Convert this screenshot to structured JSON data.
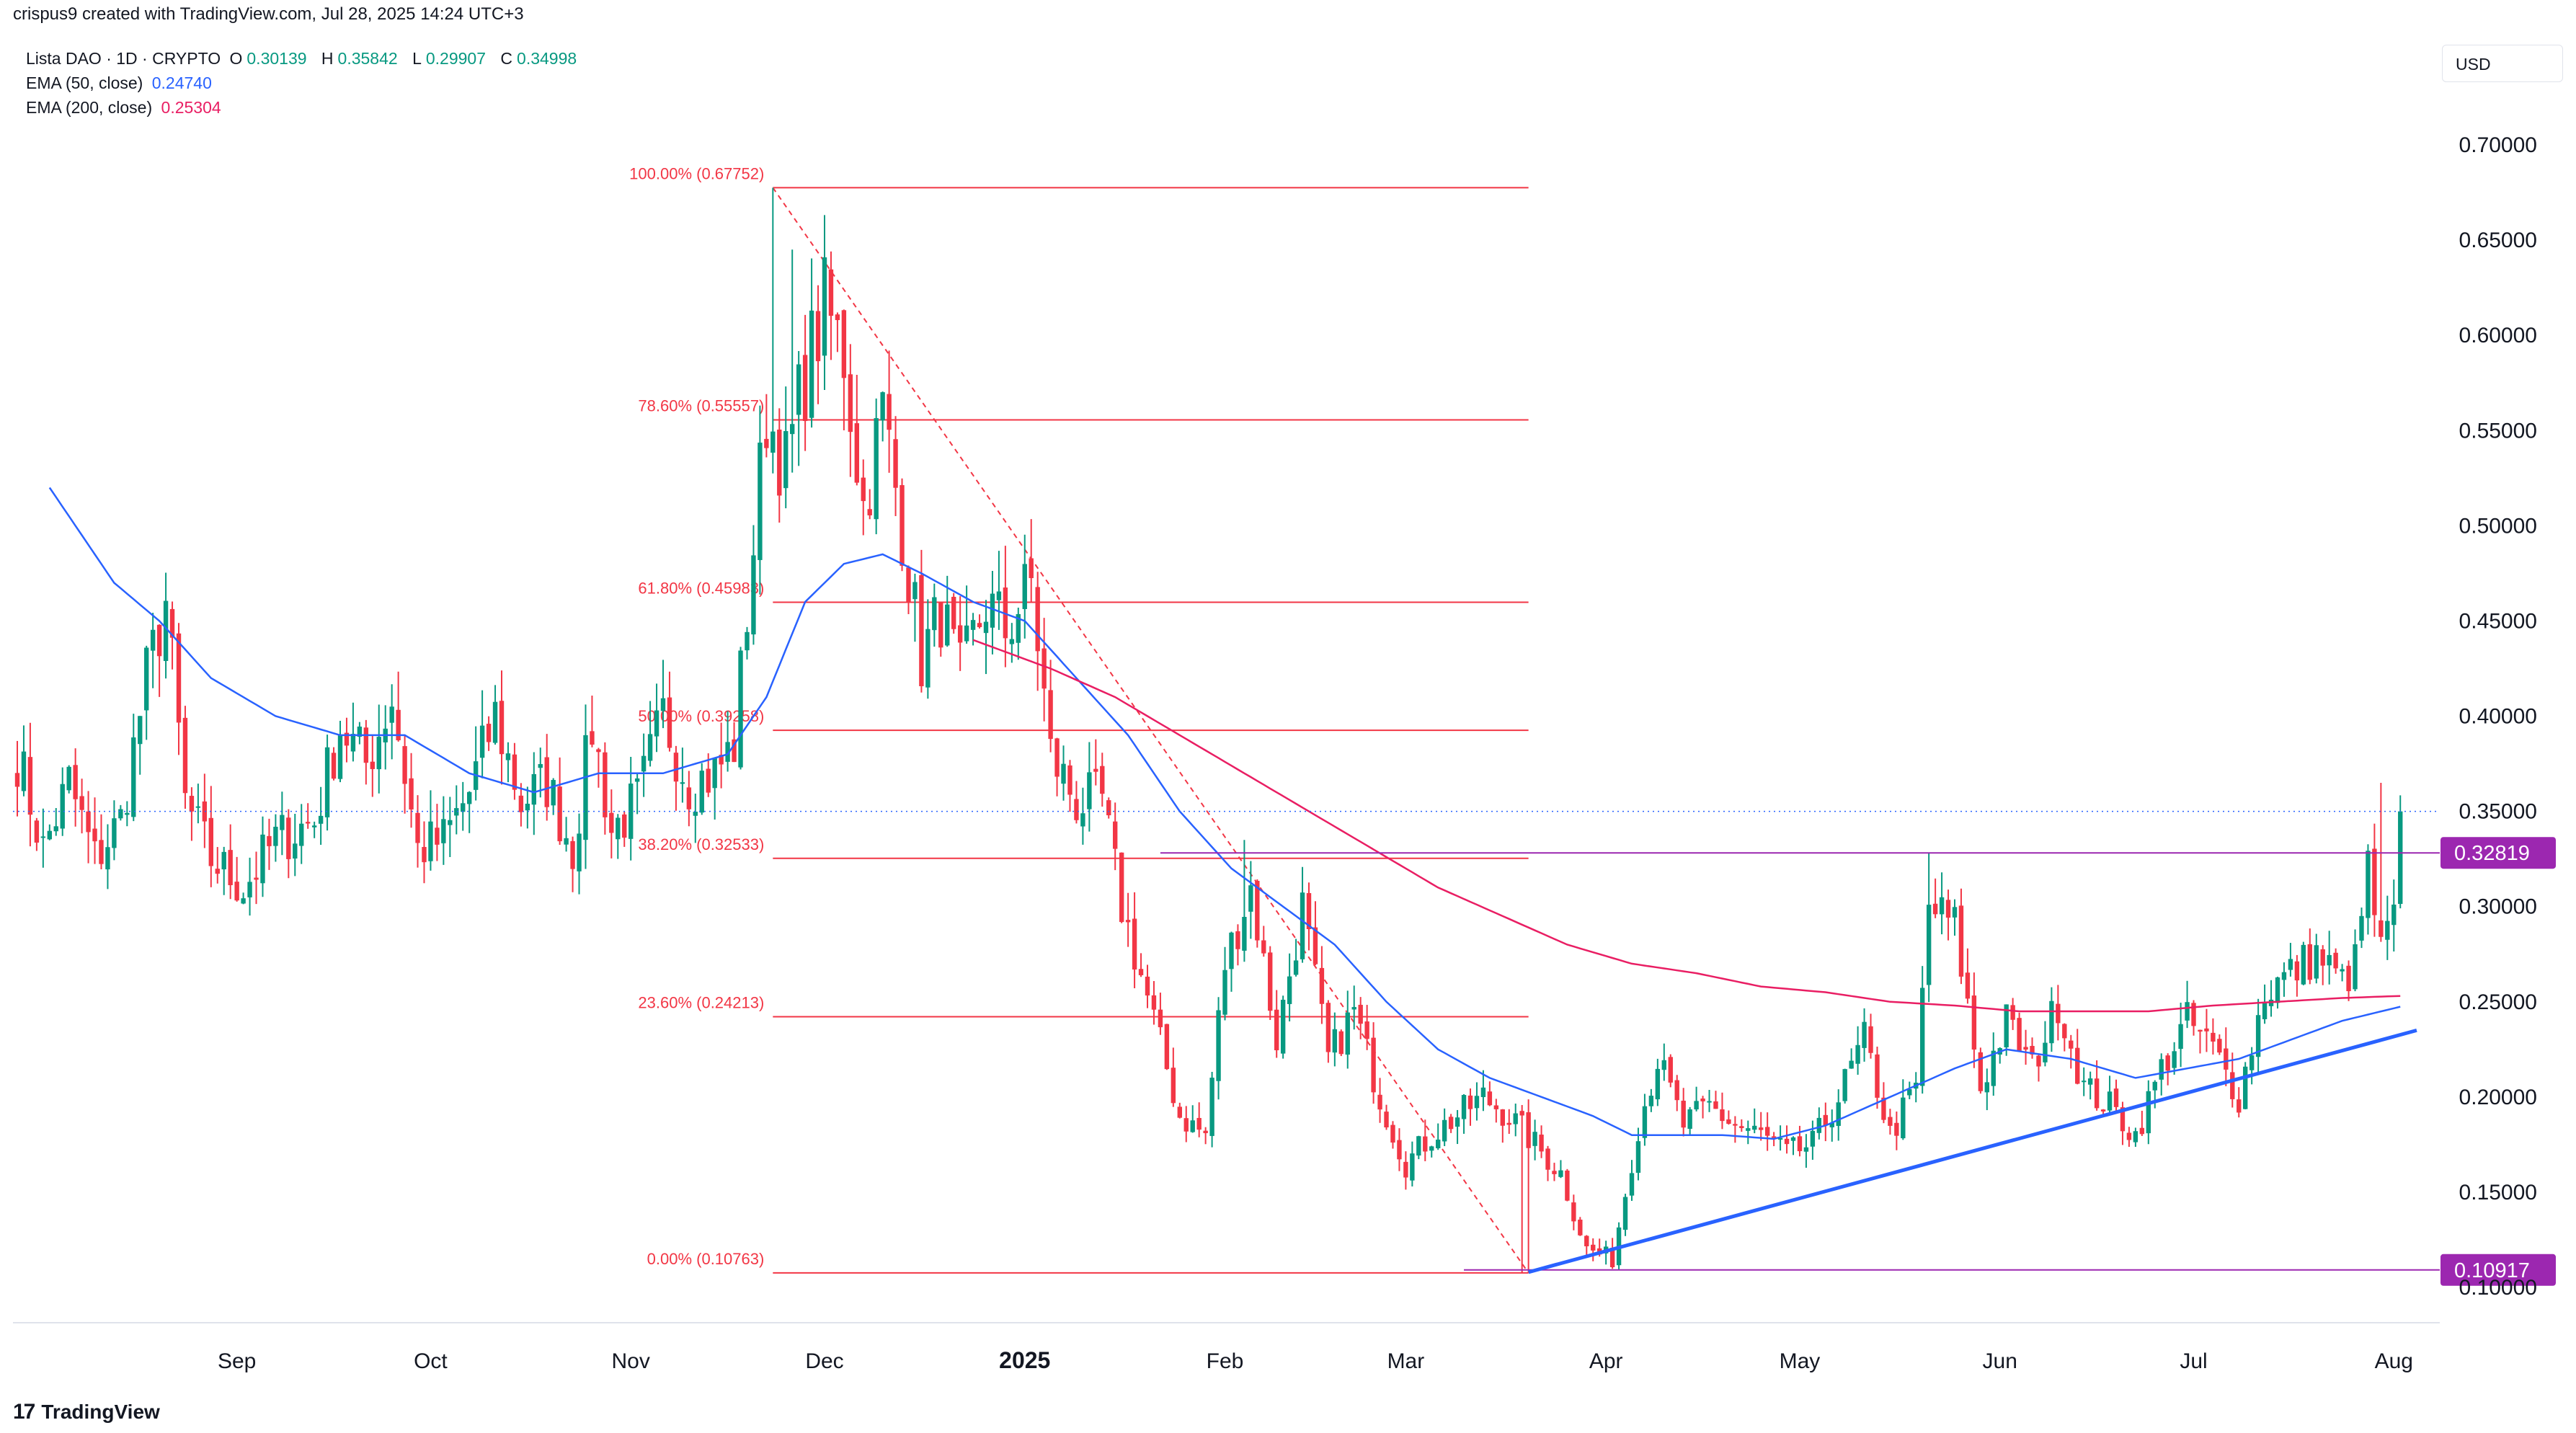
{
  "header": {
    "text": "crispus9 created with TradingView.com, Jul 28, 2025 14:24 UTC+3"
  },
  "legend": {
    "symbol": "Lista DAO · 1D · CRYPTO",
    "ohlc": [
      {
        "key": "O",
        "value": "0.30139"
      },
      {
        "key": "H",
        "value": "0.35842"
      },
      {
        "key": "L",
        "value": "0.29907"
      },
      {
        "key": "C",
        "value": "0.34998"
      }
    ],
    "ema50": {
      "label": "EMA (50, close)",
      "value": "0.24740",
      "color": "#2962ff"
    },
    "ema200": {
      "label": "EMA (200, close)",
      "value": "0.25304",
      "color": "#e91e63"
    }
  },
  "currency": "USD",
  "footer": {
    "logo": "17",
    "brand": "TradingView"
  },
  "colors": {
    "up": "#089981",
    "down": "#f23645",
    "fib": "#f23645",
    "level": "#9c27b0",
    "trend": "#2962ff"
  },
  "chart_data": {
    "type": "candlestick",
    "title": "Lista DAO · 1D · CRYPTO",
    "ylabel": "USD",
    "ylim": [
      0.08,
      0.73
    ],
    "y_ticks": [
      "0.10000",
      "0.15000",
      "0.20000",
      "0.25000",
      "0.30000",
      "0.35000",
      "0.40000",
      "0.45000",
      "0.50000",
      "0.55000",
      "0.60000",
      "0.65000",
      "0.70000"
    ],
    "x_labels": [
      "Sep",
      "Oct",
      "Nov",
      "Dec",
      "2025",
      "Feb",
      "Mar",
      "Apr",
      "May",
      "Jun",
      "Jul",
      "Aug"
    ],
    "x_label_index": [
      34,
      64,
      95,
      125,
      156,
      187,
      215,
      246,
      276,
      307,
      337,
      368
    ],
    "bars_total": 376,
    "first_bar_date": "2024-07-29",
    "last_bar_date": "2025-07-28",
    "close_anchors": [
      [
        0,
        0.38
      ],
      [
        4,
        0.33
      ],
      [
        8,
        0.365
      ],
      [
        12,
        0.325
      ],
      [
        16,
        0.345
      ],
      [
        20,
        0.42
      ],
      [
        23,
        0.46
      ],
      [
        26,
        0.355
      ],
      [
        30,
        0.325
      ],
      [
        35,
        0.31
      ],
      [
        40,
        0.335
      ],
      [
        46,
        0.345
      ],
      [
        50,
        0.395
      ],
      [
        54,
        0.375
      ],
      [
        58,
        0.41
      ],
      [
        62,
        0.33
      ],
      [
        66,
        0.335
      ],
      [
        70,
        0.36
      ],
      [
        74,
        0.4
      ],
      [
        78,
        0.355
      ],
      [
        82,
        0.365
      ],
      [
        86,
        0.33
      ],
      [
        89,
        0.395
      ],
      [
        92,
        0.34
      ],
      [
        96,
        0.355
      ],
      [
        100,
        0.4
      ],
      [
        104,
        0.365
      ],
      [
        108,
        0.37
      ],
      [
        111,
        0.385
      ],
      [
        113,
        0.455
      ],
      [
        116,
        0.56
      ],
      [
        119,
        0.53
      ],
      [
        122,
        0.58
      ],
      [
        125,
        0.615
      ],
      [
        128,
        0.59
      ],
      [
        131,
        0.51
      ],
      [
        134,
        0.56
      ],
      [
        137,
        0.5
      ],
      [
        140,
        0.43
      ],
      [
        143,
        0.455
      ],
      [
        146,
        0.42
      ],
      [
        150,
        0.46
      ],
      [
        153,
        0.445
      ],
      [
        157,
        0.47
      ],
      [
        160,
        0.38
      ],
      [
        164,
        0.355
      ],
      [
        168,
        0.355
      ],
      [
        171,
        0.3
      ],
      [
        176,
        0.24
      ],
      [
        180,
        0.19
      ],
      [
        184,
        0.18
      ],
      [
        187,
        0.27
      ],
      [
        191,
        0.31
      ],
      [
        195,
        0.23
      ],
      [
        199,
        0.3
      ],
      [
        203,
        0.22
      ],
      [
        207,
        0.245
      ],
      [
        211,
        0.2
      ],
      [
        215,
        0.165
      ],
      [
        219,
        0.18
      ],
      [
        223,
        0.19
      ],
      [
        227,
        0.2
      ],
      [
        231,
        0.19
      ],
      [
        235,
        0.175
      ],
      [
        239,
        0.16
      ],
      [
        243,
        0.12
      ],
      [
        247,
        0.115
      ],
      [
        251,
        0.185
      ],
      [
        254,
        0.22
      ],
      [
        258,
        0.185
      ],
      [
        262,
        0.195
      ],
      [
        266,
        0.185
      ],
      [
        270,
        0.18
      ],
      [
        274,
        0.17
      ],
      [
        278,
        0.175
      ],
      [
        282,
        0.2
      ],
      [
        286,
        0.23
      ],
      [
        290,
        0.18
      ],
      [
        294,
        0.205
      ],
      [
        296,
        0.3
      ],
      [
        300,
        0.29
      ],
      [
        304,
        0.205
      ],
      [
        308,
        0.24
      ],
      [
        312,
        0.215
      ],
      [
        316,
        0.25
      ],
      [
        320,
        0.205
      ],
      [
        324,
        0.195
      ],
      [
        328,
        0.18
      ],
      [
        332,
        0.215
      ],
      [
        336,
        0.24
      ],
      [
        340,
        0.225
      ],
      [
        344,
        0.2
      ],
      [
        348,
        0.255
      ],
      [
        352,
        0.265
      ],
      [
        356,
        0.275
      ],
      [
        360,
        0.26
      ],
      [
        362,
        0.27
      ],
      [
        364,
        0.32
      ],
      [
        366,
        0.275
      ],
      [
        368,
        0.295
      ],
      [
        369,
        0.35
      ]
    ],
    "ema50_anchors": [
      [
        5,
        0.52
      ],
      [
        15,
        0.47
      ],
      [
        22,
        0.45
      ],
      [
        30,
        0.42
      ],
      [
        40,
        0.4
      ],
      [
        50,
        0.39
      ],
      [
        60,
        0.39
      ],
      [
        70,
        0.37
      ],
      [
        80,
        0.36
      ],
      [
        90,
        0.37
      ],
      [
        100,
        0.37
      ],
      [
        110,
        0.38
      ],
      [
        116,
        0.41
      ],
      [
        122,
        0.46
      ],
      [
        128,
        0.48
      ],
      [
        134,
        0.485
      ],
      [
        140,
        0.475
      ],
      [
        148,
        0.46
      ],
      [
        156,
        0.45
      ],
      [
        164,
        0.42
      ],
      [
        172,
        0.39
      ],
      [
        180,
        0.35
      ],
      [
        188,
        0.32
      ],
      [
        196,
        0.3
      ],
      [
        204,
        0.28
      ],
      [
        212,
        0.25
      ],
      [
        220,
        0.225
      ],
      [
        228,
        0.21
      ],
      [
        236,
        0.2
      ],
      [
        244,
        0.19
      ],
      [
        250,
        0.18
      ],
      [
        256,
        0.18
      ],
      [
        264,
        0.18
      ],
      [
        272,
        0.178
      ],
      [
        280,
        0.185
      ],
      [
        290,
        0.2
      ],
      [
        300,
        0.215
      ],
      [
        308,
        0.225
      ],
      [
        318,
        0.22
      ],
      [
        328,
        0.21
      ],
      [
        336,
        0.215
      ],
      [
        344,
        0.22
      ],
      [
        352,
        0.23
      ],
      [
        360,
        0.24
      ],
      [
        369,
        0.2474
      ]
    ],
    "ema200_anchors": [
      [
        148,
        0.44
      ],
      [
        160,
        0.425
      ],
      [
        170,
        0.41
      ],
      [
        180,
        0.39
      ],
      [
        190,
        0.37
      ],
      [
        200,
        0.35
      ],
      [
        210,
        0.33
      ],
      [
        220,
        0.31
      ],
      [
        230,
        0.295
      ],
      [
        240,
        0.28
      ],
      [
        250,
        0.27
      ],
      [
        260,
        0.265
      ],
      [
        270,
        0.258
      ],
      [
        280,
        0.255
      ],
      [
        290,
        0.25
      ],
      [
        300,
        0.248
      ],
      [
        310,
        0.245
      ],
      [
        320,
        0.245
      ],
      [
        330,
        0.245
      ],
      [
        340,
        0.248
      ],
      [
        350,
        0.25
      ],
      [
        360,
        0.252
      ],
      [
        369,
        0.25304
      ]
    ],
    "fibonacci": {
      "start_bar": 117,
      "end_bar": 234,
      "levels": [
        {
          "ratio": "100.00%",
          "price": 0.67752,
          "label": "100.00% (0.67752)"
        },
        {
          "ratio": "78.60%",
          "price": 0.55557,
          "label": "78.60% (0.55557)"
        },
        {
          "ratio": "61.80%",
          "price": 0.45983,
          "label": "61.80% (0.45983)"
        },
        {
          "ratio": "50.00%",
          "price": 0.39258,
          "label": "50.00% (0.39258)"
        },
        {
          "ratio": "38.20%",
          "price": 0.32533,
          "label": "38.20% (0.32533)"
        },
        {
          "ratio": "23.60%",
          "price": 0.24213,
          "label": "23.60% (0.24213)"
        },
        {
          "ratio": "0.00%",
          "price": 0.10763,
          "label": "0.00% (0.10763)"
        }
      ],
      "diagonal": {
        "from_bar": 117,
        "from_price": 0.67752,
        "to_bar": 234,
        "to_price": 0.10763
      }
    },
    "horizontal_levels": [
      {
        "price": 0.32819,
        "label": "0.32819",
        "from_bar": 177
      },
      {
        "price": 0.10917,
        "label": "0.10917",
        "from_bar": 224
      }
    ],
    "trendline": {
      "from_bar": 234,
      "from_price": 0.108,
      "to_bar": 376,
      "to_price": 0.235
    },
    "last_price_line": 0.34998
  }
}
